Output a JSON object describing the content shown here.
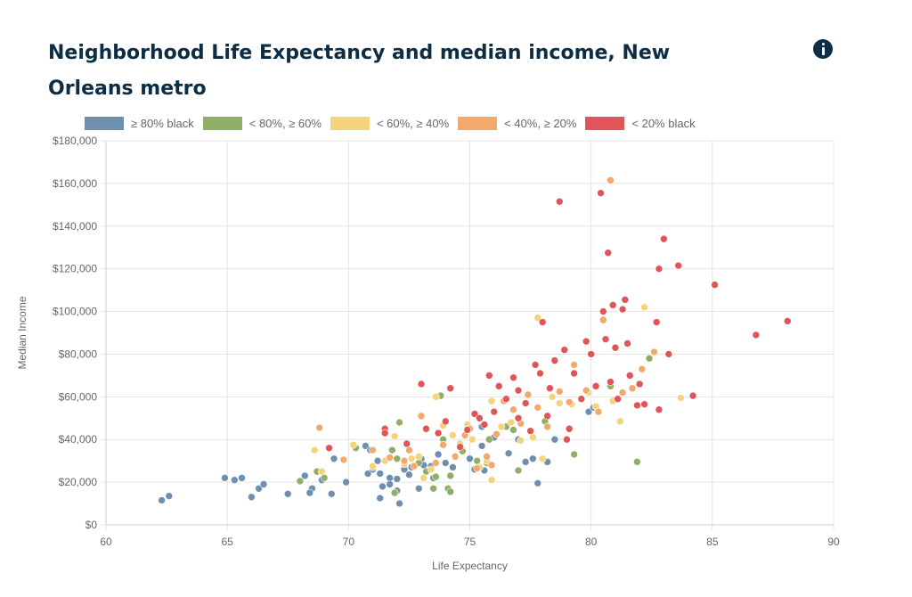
{
  "info_icon": "info-circle-icon",
  "chart_data": {
    "type": "scatter",
    "title": "Neighborhood Life Expectancy and median income, New Orleans metro",
    "xlabel": "Life Expectancy",
    "ylabel": "Median Income",
    "xlim": [
      60,
      90
    ],
    "ylim": [
      0,
      180000
    ],
    "x_ticks": [
      60,
      65,
      70,
      75,
      80,
      85,
      90
    ],
    "y_ticks": [
      0,
      20000,
      40000,
      60000,
      80000,
      100000,
      120000,
      140000,
      160000,
      180000
    ],
    "y_tick_labels": [
      "$0",
      "$20,000",
      "$40,000",
      "$60,000",
      "$80,000",
      "$100,000",
      "$120,000",
      "$140,000",
      "$160,000",
      "$180,000"
    ],
    "grid": true,
    "legend_position": "top-left",
    "series": [
      {
        "name": "≥ 80% black",
        "color": "#6f8fb1",
        "points": [
          [
            62.3,
            11500
          ],
          [
            62.6,
            13500
          ],
          [
            64.9,
            22000
          ],
          [
            65.3,
            21000
          ],
          [
            65.6,
            22000
          ],
          [
            66.0,
            13000
          ],
          [
            66.3,
            17000
          ],
          [
            66.5,
            19000
          ],
          [
            67.5,
            14500
          ],
          [
            68.2,
            23000
          ],
          [
            68.5,
            17000
          ],
          [
            68.4,
            15000
          ],
          [
            68.9,
            21000
          ],
          [
            69.3,
            14500
          ],
          [
            69.4,
            31000
          ],
          [
            69.9,
            20000
          ],
          [
            70.7,
            37000
          ],
          [
            70.9,
            35000
          ],
          [
            70.8,
            24000
          ],
          [
            71.0,
            26000
          ],
          [
            71.2,
            30000
          ],
          [
            71.3,
            24000
          ],
          [
            71.4,
            18000
          ],
          [
            71.3,
            12500
          ],
          [
            71.7,
            22000
          ],
          [
            71.7,
            19000
          ],
          [
            72.0,
            16000
          ],
          [
            72.1,
            10000
          ],
          [
            72.0,
            21500
          ],
          [
            72.3,
            26000
          ],
          [
            72.6,
            27000
          ],
          [
            72.5,
            23500
          ],
          [
            72.9,
            17000
          ],
          [
            73.0,
            31000
          ],
          [
            73.1,
            28000
          ],
          [
            73.4,
            27500
          ],
          [
            73.5,
            22000
          ],
          [
            73.7,
            33000
          ],
          [
            74.0,
            29000
          ],
          [
            74.3,
            27000
          ],
          [
            75.0,
            31000
          ],
          [
            75.2,
            26000
          ],
          [
            75.5,
            46000
          ],
          [
            75.6,
            25500
          ],
          [
            75.5,
            37000
          ],
          [
            76.0,
            41000
          ],
          [
            76.6,
            33500
          ],
          [
            77.0,
            40000
          ],
          [
            77.3,
            29500
          ],
          [
            77.6,
            31000
          ],
          [
            77.8,
            19500
          ],
          [
            78.2,
            29500
          ],
          [
            78.5,
            40000
          ],
          [
            79.9,
            53000
          ],
          [
            80.1,
            55000
          ]
        ]
      },
      {
        "name": "< 80%, ≥ 60%",
        "color": "#8fae66",
        "points": [
          [
            68.0,
            20500
          ],
          [
            68.7,
            25000
          ],
          [
            69.0,
            22000
          ],
          [
            70.3,
            36000
          ],
          [
            71.0,
            27000
          ],
          [
            71.8,
            35000
          ],
          [
            71.9,
            15000
          ],
          [
            72.0,
            31000
          ],
          [
            72.1,
            48000
          ],
          [
            72.9,
            29000
          ],
          [
            73.2,
            25000
          ],
          [
            73.5,
            17000
          ],
          [
            73.6,
            22500
          ],
          [
            73.9,
            40000
          ],
          [
            73.8,
            60500
          ],
          [
            74.1,
            17000
          ],
          [
            74.2,
            15500
          ],
          [
            74.2,
            23000
          ],
          [
            74.7,
            34500
          ],
          [
            75.3,
            30000
          ],
          [
            75.7,
            29000
          ],
          [
            75.8,
            40000
          ],
          [
            76.5,
            46000
          ],
          [
            76.8,
            44500
          ],
          [
            77.0,
            25500
          ],
          [
            78.1,
            48500
          ],
          [
            79.3,
            33000
          ],
          [
            80.8,
            65000
          ],
          [
            81.9,
            29500
          ],
          [
            82.4,
            78000
          ]
        ]
      },
      {
        "name": "< 60%, ≥ 40%",
        "color": "#f6d27a",
        "points": [
          [
            68.6,
            35000
          ],
          [
            68.9,
            25000
          ],
          [
            70.2,
            37500
          ],
          [
            71.0,
            27500
          ],
          [
            71.5,
            30000
          ],
          [
            71.9,
            41500
          ],
          [
            72.3,
            28500
          ],
          [
            72.6,
            31000
          ],
          [
            72.9,
            32000
          ],
          [
            73.1,
            22000
          ],
          [
            73.4,
            26000
          ],
          [
            73.6,
            60000
          ],
          [
            73.9,
            46500
          ],
          [
            74.3,
            42000
          ],
          [
            74.6,
            38000
          ],
          [
            74.9,
            47000
          ],
          [
            75.1,
            40000
          ],
          [
            75.4,
            27000
          ],
          [
            75.7,
            30000
          ],
          [
            75.9,
            58000
          ],
          [
            75.9,
            21000
          ],
          [
            76.3,
            46000
          ],
          [
            76.7,
            48000
          ],
          [
            77.1,
            39500
          ],
          [
            77.6,
            41000
          ],
          [
            77.8,
            97000
          ],
          [
            78.0,
            31000
          ],
          [
            78.4,
            60000
          ],
          [
            78.7,
            57000
          ],
          [
            79.2,
            56500
          ],
          [
            79.9,
            62000
          ],
          [
            80.2,
            55500
          ],
          [
            80.9,
            58000
          ],
          [
            81.2,
            48500
          ],
          [
            82.2,
            102000
          ],
          [
            83.7,
            59500
          ]
        ]
      },
      {
        "name": "< 40%, ≥ 20%",
        "color": "#f3a96b",
        "points": [
          [
            68.8,
            45500
          ],
          [
            69.8,
            30500
          ],
          [
            71.0,
            35000
          ],
          [
            71.7,
            31500
          ],
          [
            72.3,
            30000
          ],
          [
            72.5,
            35000
          ],
          [
            72.7,
            27500
          ],
          [
            73.0,
            51000
          ],
          [
            73.6,
            29000
          ],
          [
            73.9,
            37500
          ],
          [
            74.4,
            32000
          ],
          [
            74.8,
            42000
          ],
          [
            75.0,
            45000
          ],
          [
            75.3,
            26500
          ],
          [
            75.7,
            32000
          ],
          [
            75.9,
            28000
          ],
          [
            76.1,
            42500
          ],
          [
            76.4,
            58000
          ],
          [
            76.8,
            54000
          ],
          [
            77.1,
            47500
          ],
          [
            77.4,
            61000
          ],
          [
            77.8,
            55000
          ],
          [
            78.2,
            46000
          ],
          [
            78.7,
            62500
          ],
          [
            79.1,
            57500
          ],
          [
            79.3,
            75000
          ],
          [
            79.8,
            63000
          ],
          [
            80.3,
            53000
          ],
          [
            80.5,
            96000
          ],
          [
            80.8,
            161500
          ],
          [
            81.3,
            62000
          ],
          [
            81.7,
            64000
          ],
          [
            82.1,
            73000
          ],
          [
            82.6,
            81000
          ]
        ]
      },
      {
        "name": "< 20% black",
        "color": "#e15559",
        "points": [
          [
            69.2,
            36000
          ],
          [
            71.5,
            45000
          ],
          [
            71.5,
            43000
          ],
          [
            72.4,
            38000
          ],
          [
            73.0,
            66000
          ],
          [
            73.2,
            45000
          ],
          [
            73.7,
            43000
          ],
          [
            74.0,
            48500
          ],
          [
            74.2,
            64000
          ],
          [
            74.6,
            36500
          ],
          [
            74.9,
            44500
          ],
          [
            75.2,
            52000
          ],
          [
            75.4,
            50000
          ],
          [
            75.6,
            47000
          ],
          [
            75.8,
            70000
          ],
          [
            76.0,
            53000
          ],
          [
            76.2,
            65000
          ],
          [
            76.5,
            59000
          ],
          [
            76.8,
            69000
          ],
          [
            77.0,
            63000
          ],
          [
            77.0,
            50000
          ],
          [
            77.3,
            57000
          ],
          [
            77.5,
            44000
          ],
          [
            77.7,
            75000
          ],
          [
            77.9,
            71000
          ],
          [
            78.0,
            95000
          ],
          [
            78.2,
            51000
          ],
          [
            78.3,
            64000
          ],
          [
            78.5,
            77000
          ],
          [
            78.7,
            151500
          ],
          [
            78.9,
            82000
          ],
          [
            79.1,
            45000
          ],
          [
            79.0,
            40000
          ],
          [
            79.3,
            71000
          ],
          [
            79.6,
            59000
          ],
          [
            79.8,
            86000
          ],
          [
            80.0,
            80000
          ],
          [
            80.2,
            65000
          ],
          [
            80.4,
            155500
          ],
          [
            80.5,
            100000
          ],
          [
            80.6,
            87000
          ],
          [
            80.7,
            127500
          ],
          [
            80.8,
            67000
          ],
          [
            80.9,
            103000
          ],
          [
            81.0,
            83000
          ],
          [
            81.1,
            59000
          ],
          [
            81.3,
            101000
          ],
          [
            81.4,
            105500
          ],
          [
            81.5,
            85000
          ],
          [
            81.6,
            70000
          ],
          [
            81.9,
            56000
          ],
          [
            82.0,
            66000
          ],
          [
            82.2,
            56500
          ],
          [
            82.7,
            95000
          ],
          [
            82.8,
            54000
          ],
          [
            82.8,
            120000
          ],
          [
            83.0,
            134000
          ],
          [
            83.2,
            80000
          ],
          [
            83.6,
            121500
          ],
          [
            84.2,
            60500
          ],
          [
            85.1,
            112500
          ],
          [
            86.8,
            89000
          ],
          [
            88.1,
            95500
          ]
        ]
      }
    ]
  }
}
